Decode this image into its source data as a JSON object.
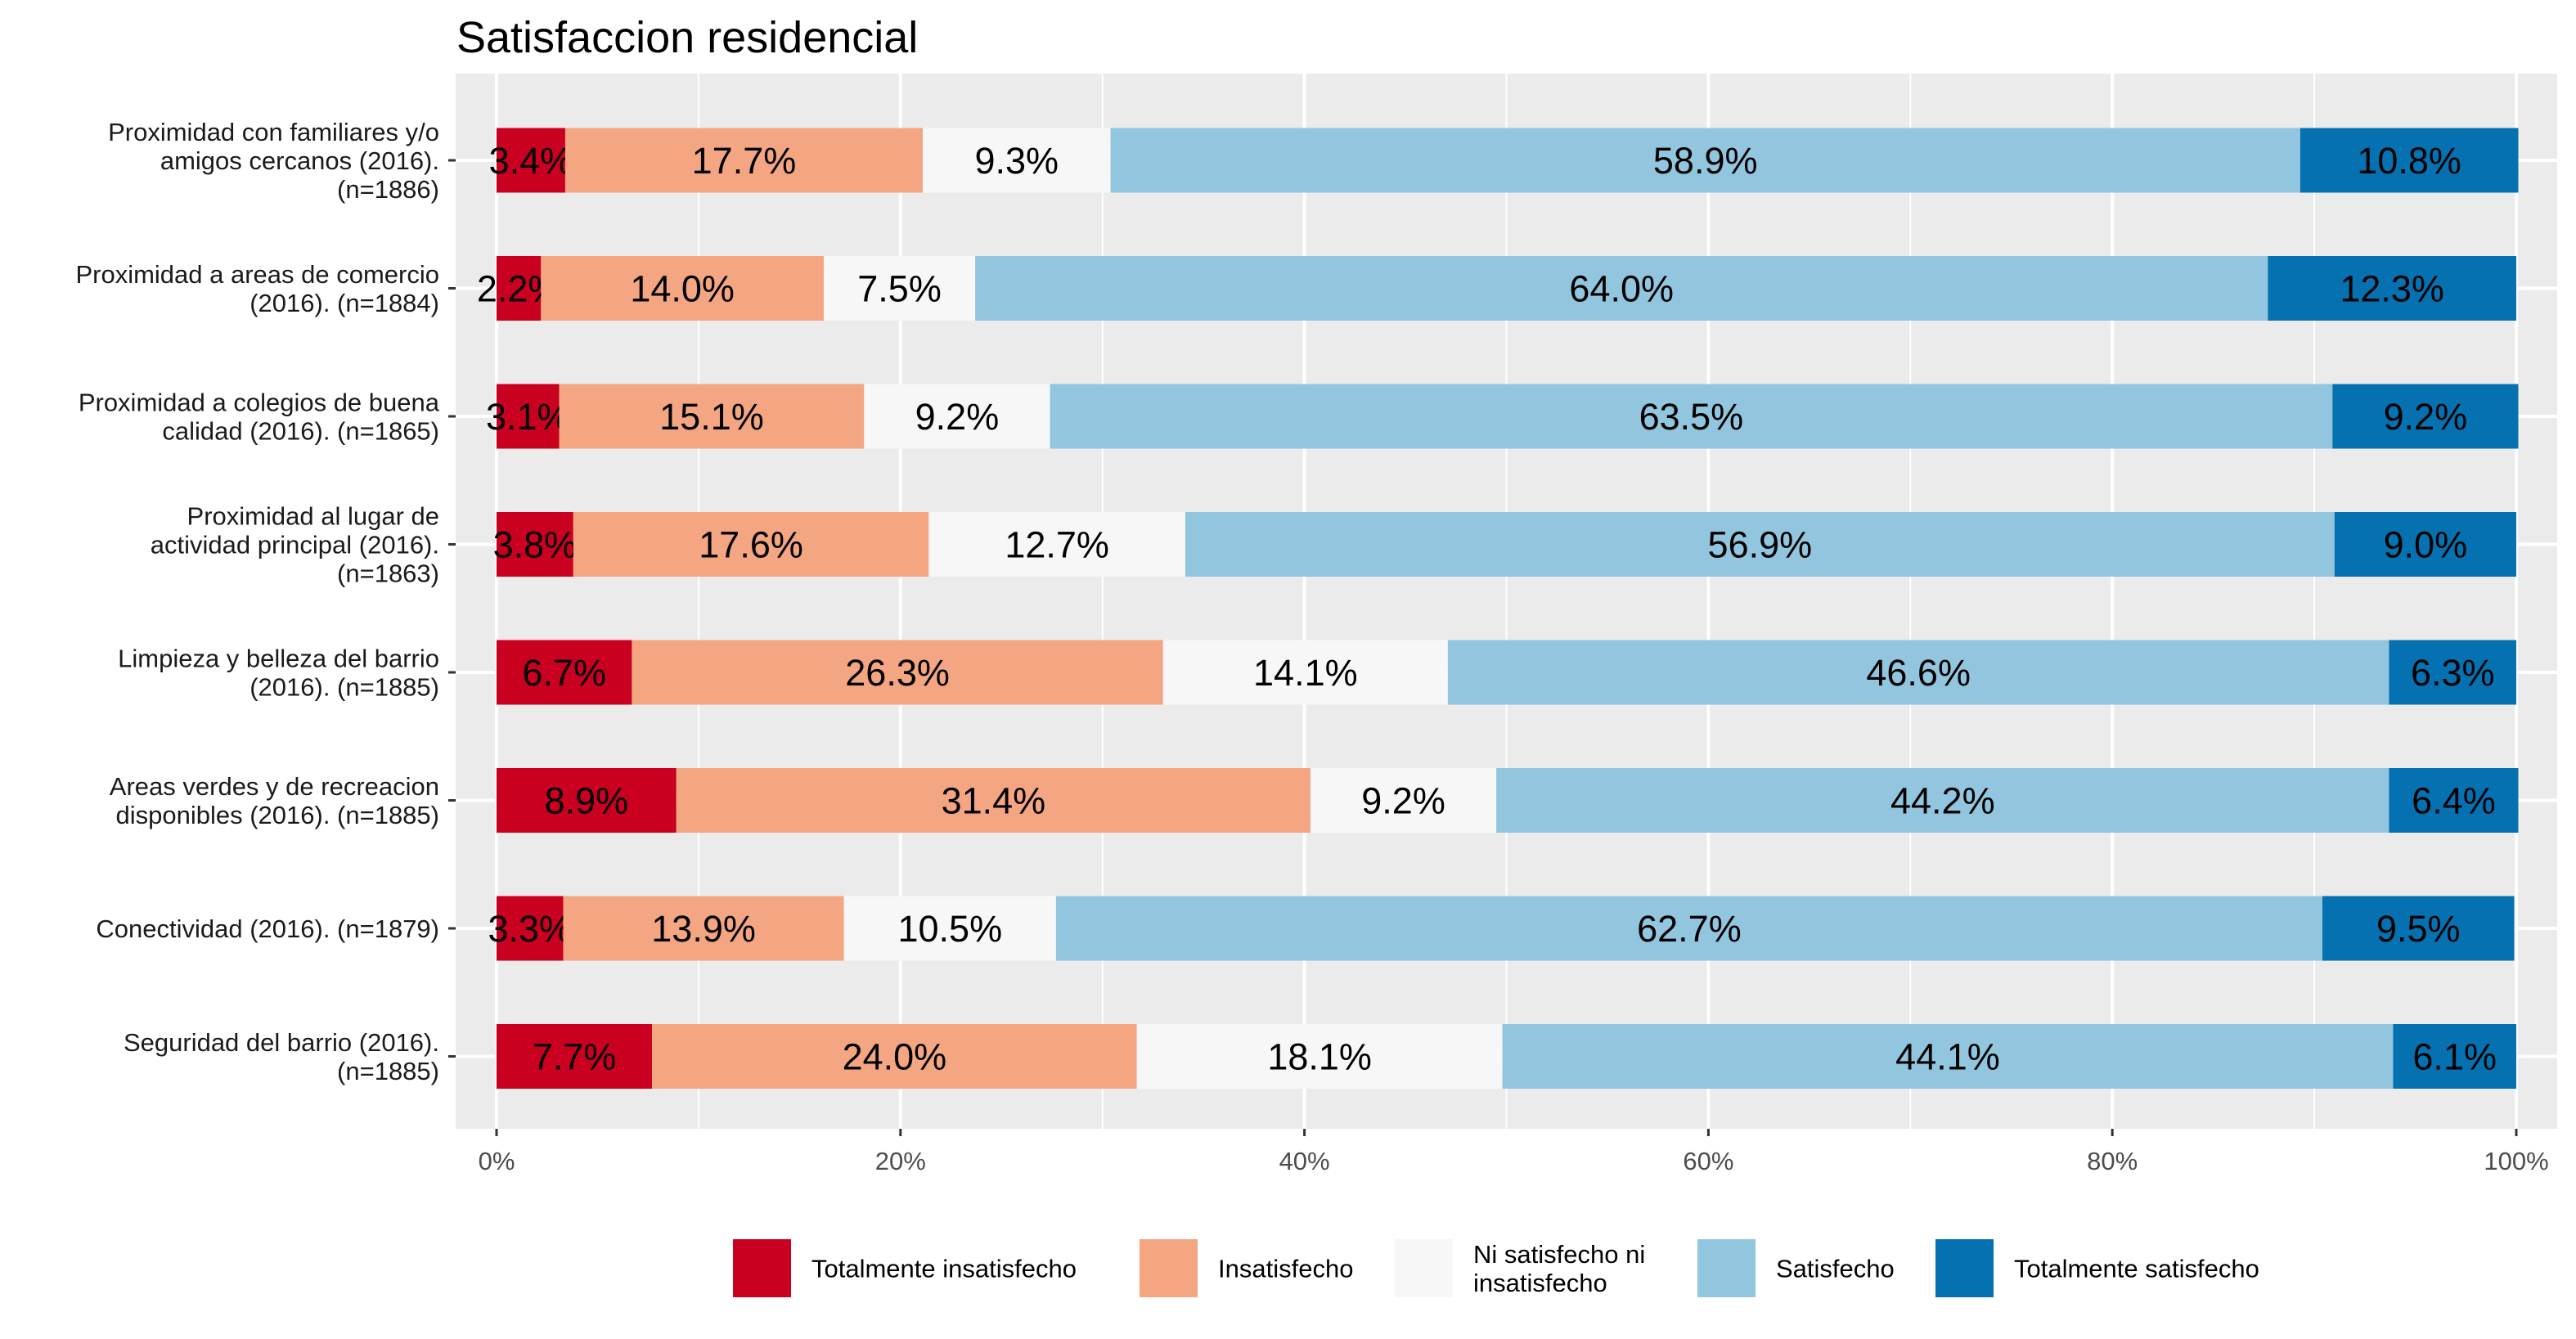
{
  "chart_data": {
    "type": "bar",
    "orientation": "horizontal",
    "stacked": true,
    "title": "Satisfaccion residencial",
    "xlabel": "",
    "ylabel": "",
    "xlim": [
      0,
      100
    ],
    "x_ticks": [
      "0%",
      "20%",
      "40%",
      "60%",
      "80%",
      "100%"
    ],
    "x_tick_values": [
      0,
      20,
      40,
      60,
      80,
      100
    ],
    "grid": true,
    "legend_position": "bottom",
    "categories": [
      [
        "Proximidad con familiares y/o",
        "amigos cercanos (2016).",
        "(n=1886)"
      ],
      [
        "Proximidad a areas de comercio",
        "(2016). (n=1884)"
      ],
      [
        "Proximidad a colegios de buena",
        "calidad (2016). (n=1865)"
      ],
      [
        "Proximidad al lugar de",
        "actividad principal (2016).",
        "(n=1863)"
      ],
      [
        "Limpieza y belleza del barrio",
        "(2016). (n=1885)"
      ],
      [
        "Areas verdes y de recreacion",
        "disponibles (2016). (n=1885)"
      ],
      [
        "Conectividad (2016). (n=1879)"
      ],
      [
        "Seguridad del barrio (2016).",
        "(n=1885)"
      ]
    ],
    "series": [
      {
        "name": "Totalmente insatisfecho",
        "legend_lines": [
          "Totalmente insatisfecho"
        ],
        "color": "#ca0020",
        "values": [
          3.4,
          2.2,
          3.1,
          3.8,
          6.7,
          8.9,
          3.3,
          7.7
        ],
        "labels": [
          "3.4%",
          "2.2%",
          "3.1%",
          "3.8%",
          "6.7%",
          "8.9%",
          "3.3%",
          "7.7%"
        ]
      },
      {
        "name": "Insatisfecho",
        "legend_lines": [
          "Insatisfecho"
        ],
        "color": "#f4a582",
        "values": [
          17.7,
          14.0,
          15.1,
          17.6,
          26.3,
          31.4,
          13.9,
          24.0
        ],
        "labels": [
          "17.7%",
          "14.0%",
          "15.1%",
          "17.6%",
          "26.3%",
          "31.4%",
          "13.9%",
          "24.0%"
        ]
      },
      {
        "name": "Ni satisfecho ni insatisfecho",
        "legend_lines": [
          "Ni satisfecho ni",
          "insatisfecho"
        ],
        "color": "#f7f7f7",
        "values": [
          9.3,
          7.5,
          9.2,
          12.7,
          14.1,
          9.2,
          10.5,
          18.1
        ],
        "labels": [
          "9.3%",
          "7.5%",
          "9.2%",
          "12.7%",
          "14.1%",
          "9.2%",
          "10.5%",
          "18.1%"
        ]
      },
      {
        "name": "Satisfecho",
        "legend_lines": [
          "Satisfecho"
        ],
        "color": "#92c5de",
        "values": [
          58.9,
          64.0,
          63.5,
          56.9,
          46.6,
          44.2,
          62.7,
          44.1
        ],
        "labels": [
          "58.9%",
          "64.0%",
          "63.5%",
          "56.9%",
          "46.6%",
          "44.2%",
          "62.7%",
          "44.1%"
        ]
      },
      {
        "name": "Totalmente satisfecho",
        "legend_lines": [
          "Totalmente satisfecho"
        ],
        "color": "#0571b0",
        "values": [
          10.8,
          12.3,
          9.2,
          9.0,
          6.3,
          6.4,
          9.5,
          6.1
        ],
        "labels": [
          "10.8%",
          "12.3%",
          "9.2%",
          "9.0%",
          "6.3%",
          "6.4%",
          "9.5%",
          "6.1%"
        ]
      }
    ]
  }
}
